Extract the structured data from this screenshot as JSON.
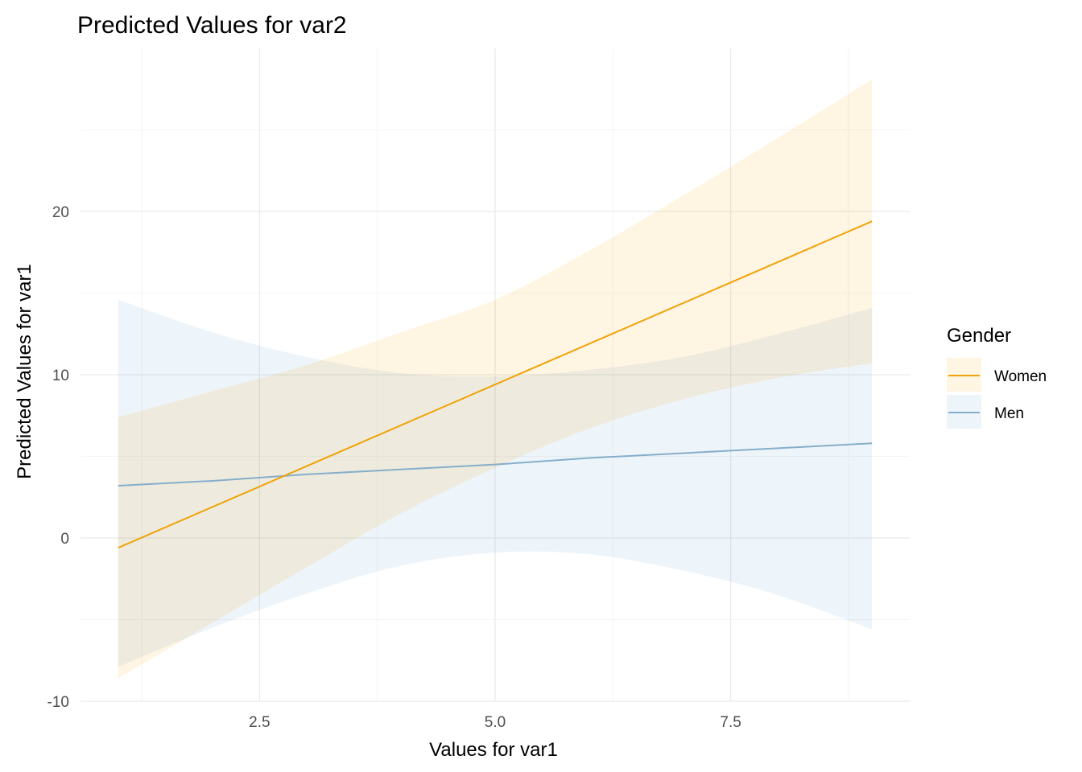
{
  "chart_data": {
    "type": "line",
    "title": "Predicted Values for var2",
    "xlabel": "Values for var1",
    "ylabel": "Predicted Values for var1",
    "xlim": [
      0.6,
      9.4
    ],
    "ylim": [
      -10,
      30
    ],
    "x_ticks": [
      2.5,
      5.0,
      7.5
    ],
    "x_tick_labels": [
      "2.5",
      "5.0",
      "7.5"
    ],
    "x_minor": [
      1.25,
      3.75,
      6.25,
      8.75
    ],
    "y_ticks": [
      -10,
      0,
      10,
      20
    ],
    "y_tick_labels": [
      "-10",
      "0",
      "10",
      "20"
    ],
    "y_minor": [
      -5,
      5,
      15,
      25
    ],
    "grid": true,
    "legend": {
      "title": "Gender",
      "position": "right"
    },
    "series": [
      {
        "name": "Women",
        "color": "#F0A30A",
        "ribbon_color": "#FFF5E3",
        "x": [
          1,
          2,
          3,
          4,
          5,
          6,
          7,
          8,
          9
        ],
        "y": [
          -0.6,
          1.9,
          4.4,
          6.9,
          9.4,
          11.9,
          14.4,
          16.9,
          19.4
        ],
        "lower": [
          -8.6,
          -5.2,
          -1.8,
          1.5,
          4.3,
          6.7,
          8.5,
          9.8,
          10.7
        ],
        "upper": [
          7.4,
          9.0,
          10.6,
          12.6,
          14.6,
          17.6,
          21.0,
          24.5,
          28.1
        ]
      },
      {
        "name": "Men",
        "color": "#86AECB",
        "ribbon_color": "#EEF5FA",
        "x": [
          1,
          2,
          3,
          4,
          5,
          6,
          7,
          8,
          9
        ],
        "y": [
          3.2,
          3.5,
          3.9,
          4.2,
          4.5,
          4.9,
          5.2,
          5.5,
          5.8
        ],
        "lower": [
          -7.9,
          -5.5,
          -3.4,
          -1.7,
          -0.9,
          -1.0,
          -2.0,
          -3.5,
          -5.6
        ],
        "upper": [
          14.6,
          12.6,
          11.1,
          10.1,
          9.9,
          10.3,
          11.1,
          12.5,
          14.1
        ]
      }
    ]
  }
}
